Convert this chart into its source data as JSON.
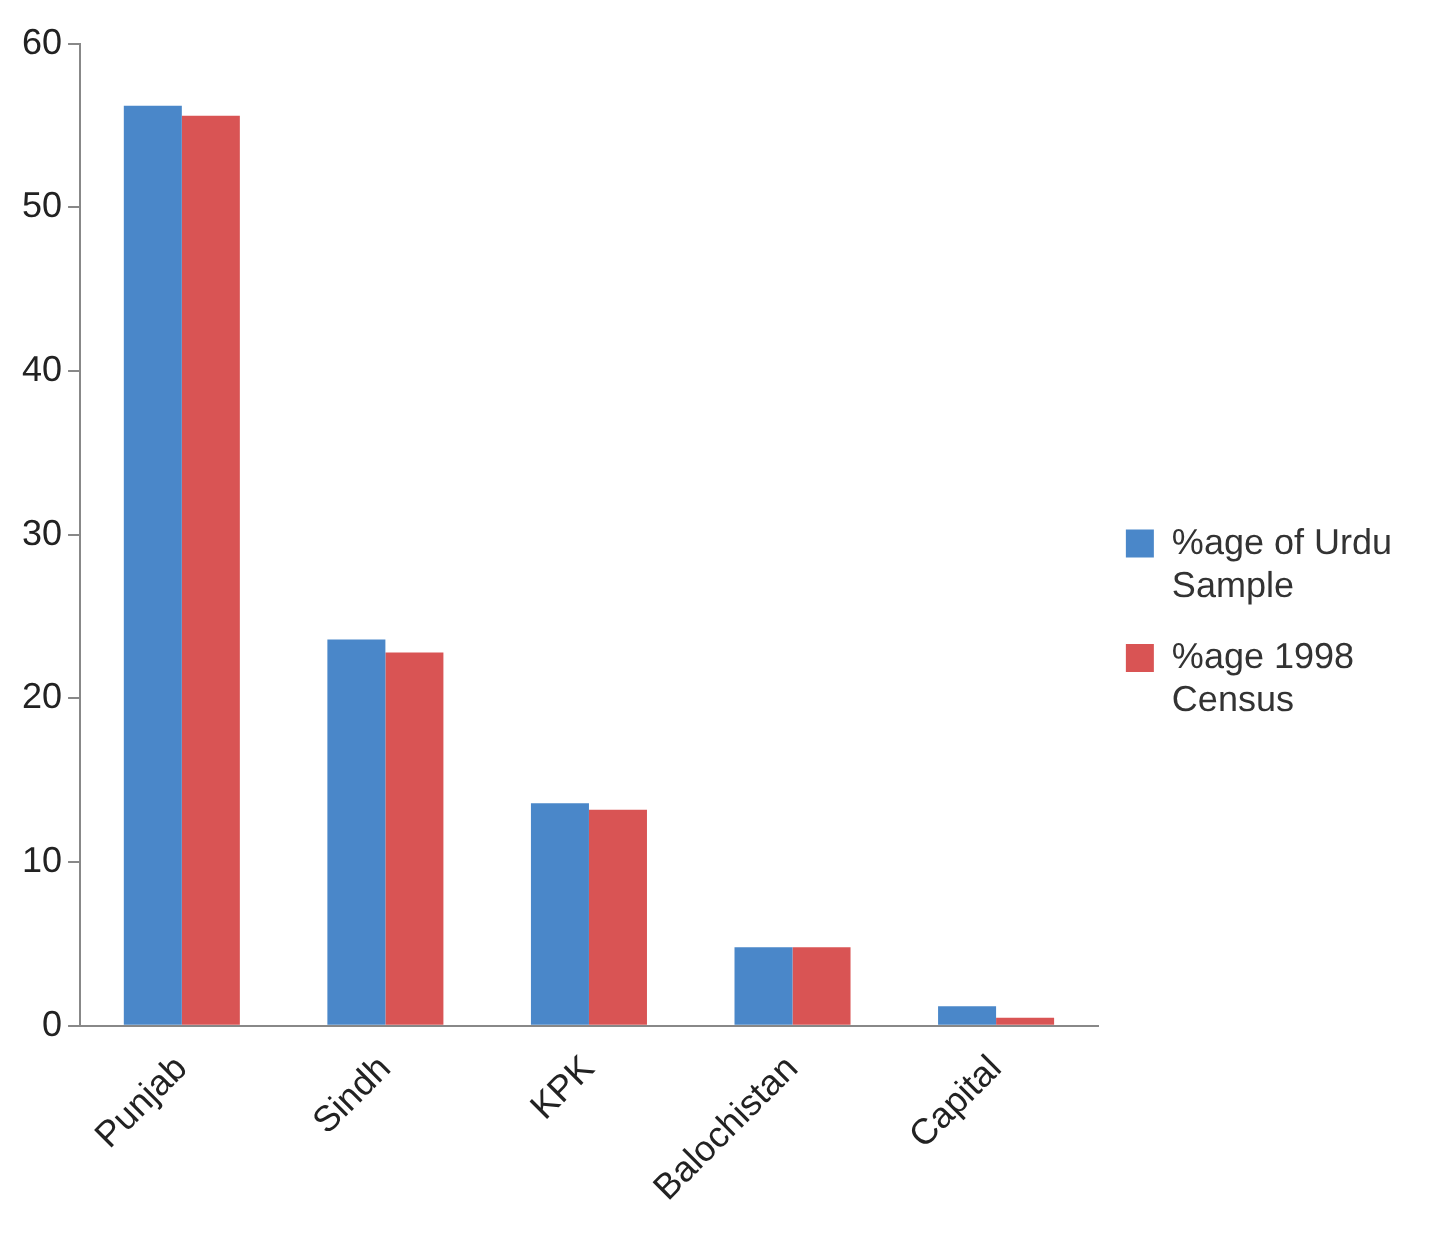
{
  "chart_data": {
    "type": "bar",
    "categories": [
      "Punjab",
      "Sindh",
      "KPK",
      "Balochistan",
      "Capital"
    ],
    "series": [
      {
        "name": "%age of Urdu Sample",
        "color": "#4a87c9",
        "values": [
          56.2,
          23.6,
          13.6,
          4.8,
          1.2
        ]
      },
      {
        "name": "%age 1998 Census",
        "color": "#d95454",
        "values": [
          55.6,
          22.8,
          13.2,
          4.8,
          0.5
        ]
      }
    ],
    "ylim": [
      0,
      60
    ],
    "yticks": [
      0,
      10,
      20,
      30,
      40,
      50,
      60
    ],
    "grid": false,
    "legend": "right"
  }
}
